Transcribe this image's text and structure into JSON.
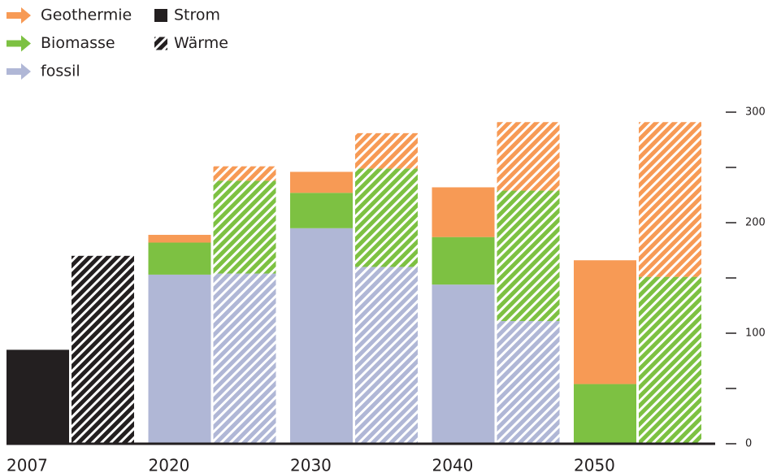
{
  "chart_data": {
    "type": "bar",
    "stacked": true,
    "categories": [
      "2007",
      "2020",
      "2030",
      "2040",
      "2050"
    ],
    "kinds": [
      {
        "name": "Strom",
        "pattern": "solid"
      },
      {
        "name": "Wärme",
        "pattern": "hatch"
      }
    ],
    "base": {
      "color": "#231f20",
      "values": [
        [
          85,
          170
        ],
        [
          null,
          null
        ],
        [
          null,
          null
        ],
        [
          null,
          null
        ],
        [
          null,
          null
        ]
      ]
    },
    "series": [
      {
        "name": "Geothermie",
        "color": "#f79a55",
        "values": [
          [
            null,
            null
          ],
          [
            7,
            13
          ],
          [
            19,
            32
          ],
          [
            45,
            62
          ],
          [
            112,
            140
          ]
        ]
      },
      {
        "name": "Biomasse",
        "color": "#7dc142",
        "values": [
          [
            null,
            null
          ],
          [
            29,
            84
          ],
          [
            32,
            89
          ],
          [
            43,
            118
          ],
          [
            54,
            151
          ]
        ]
      },
      {
        "name": "fossil",
        "color": "#b0b7d6",
        "values": [
          [
            null,
            null
          ],
          [
            153,
            154
          ],
          [
            195,
            160
          ],
          [
            144,
            111
          ],
          [
            0,
            0
          ]
        ]
      }
    ],
    "ylim": [
      0,
      300
    ],
    "yticks": [
      0,
      100,
      200,
      300
    ],
    "minor_yticks": [
      50,
      150,
      250
    ]
  }
}
